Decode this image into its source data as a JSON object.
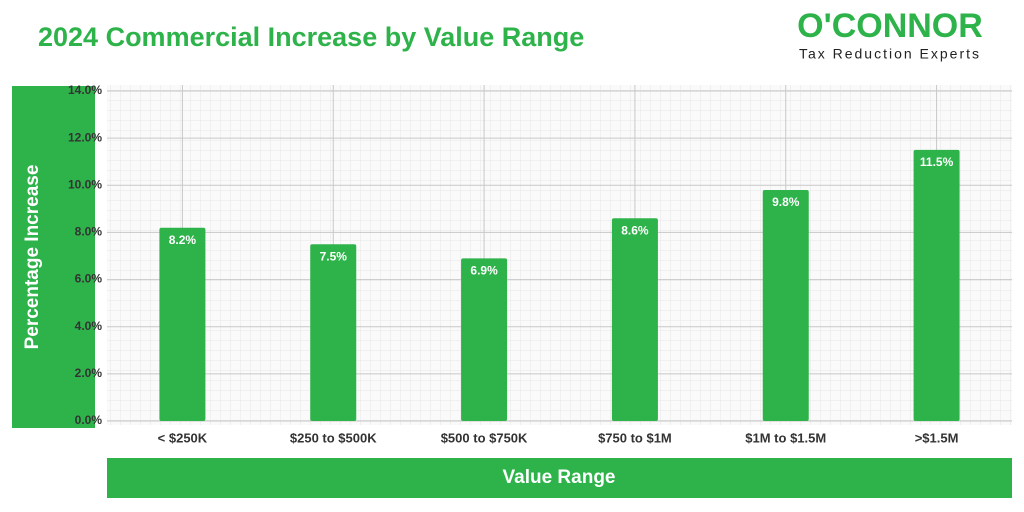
{
  "chart_data": {
    "type": "bar",
    "title": "2024 Commercial Increase by Value Range",
    "x_label": "Value Range",
    "y_label": "Percentage Increase",
    "categories": [
      "< $250K",
      "$250 to $500K",
      "$500 to $750K",
      "$750 to $1M",
      "$1M to $1.5M",
      ">$1.5M"
    ],
    "values": [
      8.2,
      7.5,
      6.9,
      8.6,
      9.8,
      11.5
    ],
    "value_labels": [
      "8.2%",
      "7.5%",
      "6.9%",
      "8.6%",
      "9.8%",
      "11.5%"
    ],
    "color": "#2db34a",
    "ylim": [
      0,
      14
    ],
    "yticks": [
      {
        "value": 0,
        "label": "0.0%"
      },
      {
        "value": 2,
        "label": "2.0%"
      },
      {
        "value": 4,
        "label": "4.0%"
      },
      {
        "value": 6,
        "label": "6.0%"
      },
      {
        "value": 8,
        "label": "8.0%"
      },
      {
        "value": 10,
        "label": "10.0%"
      },
      {
        "value": 12,
        "label": "12.0%"
      },
      {
        "value": 14,
        "label": "14.0%"
      }
    ],
    "grid": true
  },
  "logo": {
    "name": "O'CONNOR",
    "tagline": "Tax Reduction Experts"
  }
}
